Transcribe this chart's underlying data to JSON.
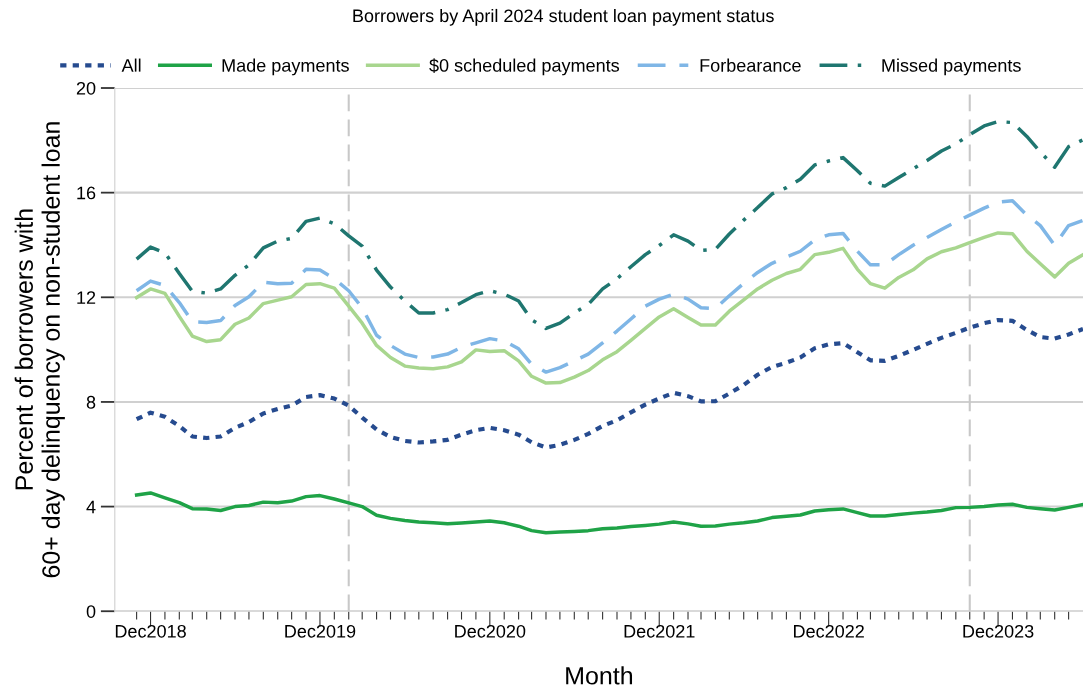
{
  "chart_data": {
    "type": "line",
    "title": "Borrowers by April 2024 student loan payment status",
    "xlabel": "Month",
    "ylabel": "Percent of borrowers with\n60+ day delinquency on non-student loan",
    "x": [
      "2018-11",
      "2018-12",
      "2019-01",
      "2019-02",
      "2019-03",
      "2019-04",
      "2019-05",
      "2019-06",
      "2019-07",
      "2019-08",
      "2019-09",
      "2019-10",
      "2019-11",
      "2019-12",
      "2020-01",
      "2020-02",
      "2020-03",
      "2020-04",
      "2020-05",
      "2020-06",
      "2020-07",
      "2020-08",
      "2020-09",
      "2020-10",
      "2020-11",
      "2020-12",
      "2021-01",
      "2021-02",
      "2021-03",
      "2021-04",
      "2021-05",
      "2021-06",
      "2021-07",
      "2021-08",
      "2021-09",
      "2021-10",
      "2021-11",
      "2021-12",
      "2022-01",
      "2022-02",
      "2022-03",
      "2022-04",
      "2022-05",
      "2022-06",
      "2022-07",
      "2022-08",
      "2022-09",
      "2022-10",
      "2022-11",
      "2022-12",
      "2023-01",
      "2023-02",
      "2023-03",
      "2023-04",
      "2023-05",
      "2023-06",
      "2023-07",
      "2023-08",
      "2023-09",
      "2023-10",
      "2023-11",
      "2023-12",
      "2024-01",
      "2024-02",
      "2024-03",
      "2024-04",
      "2024-05",
      "2024-06"
    ],
    "series": [
      {
        "name": "All",
        "color": "#264b8f",
        "line_style": "dotted",
        "values": [
          7.34,
          7.59,
          7.43,
          7.08,
          6.68,
          6.62,
          6.68,
          7.01,
          7.23,
          7.56,
          7.73,
          7.86,
          8.19,
          8.26,
          8.13,
          7.86,
          7.4,
          6.95,
          6.66,
          6.51,
          6.45,
          6.49,
          6.55,
          6.75,
          6.92,
          7.01,
          6.92,
          6.75,
          6.46,
          6.26,
          6.36,
          6.55,
          6.78,
          7.08,
          7.3,
          7.6,
          7.9,
          8.13,
          8.35,
          8.22,
          8.02,
          8.03,
          8.32,
          8.65,
          9.04,
          9.34,
          9.5,
          9.7,
          10.05,
          10.2,
          10.25,
          9.9,
          9.59,
          9.57,
          9.76,
          9.99,
          10.22,
          10.45,
          10.64,
          10.84,
          11.01,
          11.13,
          11.1,
          10.75,
          10.48,
          10.42,
          10.58,
          10.79
        ]
      },
      {
        "name": "Made payments",
        "color": "#1fa347",
        "line_style": "solid",
        "values": [
          4.44,
          4.52,
          4.33,
          4.15,
          3.92,
          3.91,
          3.85,
          4.0,
          4.04,
          4.17,
          4.15,
          4.21,
          4.38,
          4.42,
          4.29,
          4.14,
          4.0,
          3.67,
          3.55,
          3.47,
          3.41,
          3.38,
          3.34,
          3.37,
          3.41,
          3.45,
          3.38,
          3.25,
          3.08,
          3.0,
          3.03,
          3.05,
          3.08,
          3.15,
          3.18,
          3.24,
          3.28,
          3.33,
          3.41,
          3.34,
          3.25,
          3.26,
          3.33,
          3.38,
          3.45,
          3.58,
          3.63,
          3.68,
          3.83,
          3.88,
          3.91,
          3.77,
          3.64,
          3.64,
          3.7,
          3.75,
          3.79,
          3.85,
          3.96,
          3.97,
          4.0,
          4.06,
          4.09,
          3.97,
          3.92,
          3.87,
          3.97,
          4.08
        ]
      },
      {
        "name": "$0 scheduled payments",
        "color": "#a8d68e",
        "line_style": "solid",
        "values": [
          11.99,
          12.32,
          12.15,
          11.27,
          10.52,
          10.31,
          10.38,
          10.97,
          11.21,
          11.76,
          11.89,
          12.02,
          12.49,
          12.52,
          12.35,
          11.66,
          11.01,
          10.16,
          9.7,
          9.37,
          9.3,
          9.27,
          9.34,
          9.53,
          9.99,
          9.93,
          9.96,
          9.57,
          8.98,
          8.72,
          8.74,
          8.95,
          9.2,
          9.61,
          9.92,
          10.35,
          10.81,
          11.25,
          11.56,
          11.23,
          10.94,
          10.94,
          11.47,
          11.9,
          12.32,
          12.65,
          12.91,
          13.07,
          13.63,
          13.72,
          13.87,
          13.07,
          12.52,
          12.35,
          12.76,
          13.05,
          13.47,
          13.74,
          13.89,
          14.09,
          14.29,
          14.46,
          14.43,
          13.76,
          13.28,
          12.78,
          13.3,
          13.63
        ]
      },
      {
        "name": "Forbearance",
        "color": "#7fb6e6",
        "line_style": "dashed",
        "values": [
          12.25,
          12.62,
          12.45,
          11.8,
          11.07,
          11.04,
          11.11,
          11.69,
          12.02,
          12.58,
          12.52,
          12.54,
          13.07,
          13.04,
          12.71,
          12.25,
          11.6,
          10.55,
          10.16,
          9.83,
          9.7,
          9.72,
          9.83,
          10.09,
          10.26,
          10.42,
          10.33,
          10.03,
          9.44,
          9.14,
          9.31,
          9.57,
          9.83,
          10.26,
          10.71,
          11.17,
          11.66,
          11.93,
          12.12,
          11.93,
          11.6,
          11.57,
          12.06,
          12.53,
          12.95,
          13.3,
          13.54,
          13.76,
          14.19,
          14.39,
          14.44,
          13.76,
          13.24,
          13.24,
          13.63,
          13.99,
          14.29,
          14.59,
          14.88,
          15.14,
          15.41,
          15.64,
          15.69,
          15.14,
          14.74,
          13.99,
          14.74,
          14.94
        ]
      },
      {
        "name": "Missed payments",
        "color": "#1f7670",
        "line_style": "dashdot",
        "values": [
          13.46,
          13.92,
          13.7,
          12.91,
          12.23,
          12.16,
          12.32,
          12.84,
          13.24,
          13.89,
          14.15,
          14.25,
          14.9,
          15.03,
          14.81,
          14.35,
          13.96,
          13.04,
          12.39,
          11.86,
          11.4,
          11.4,
          11.53,
          11.8,
          12.1,
          12.25,
          12.12,
          11.86,
          11.14,
          10.81,
          11.01,
          11.4,
          11.73,
          12.32,
          12.71,
          13.17,
          13.63,
          13.98,
          14.39,
          14.15,
          13.79,
          13.83,
          14.42,
          14.95,
          15.43,
          15.95,
          16.19,
          16.51,
          17.06,
          17.21,
          17.34,
          16.84,
          16.36,
          16.25,
          16.58,
          16.91,
          17.23,
          17.59,
          17.86,
          18.22,
          18.55,
          18.72,
          18.68,
          18.15,
          17.56,
          16.97,
          17.76,
          18.02
        ]
      }
    ],
    "xlim": [
      "2018-09-15",
      "2024-06"
    ],
    "xticks": [
      {
        "value": "2018-11",
        "label": null
      },
      {
        "value": "2018-12",
        "label": "Dec2018"
      },
      {
        "value": "2019-01",
        "label": null
      },
      {
        "value": "2019-02",
        "label": null
      },
      {
        "value": "2019-03",
        "label": null
      },
      {
        "value": "2019-04",
        "label": null
      },
      {
        "value": "2019-05",
        "label": null
      },
      {
        "value": "2019-06",
        "label": null
      },
      {
        "value": "2019-07",
        "label": null
      },
      {
        "value": "2019-08",
        "label": null
      },
      {
        "value": "2019-09",
        "label": null
      },
      {
        "value": "2019-10",
        "label": null
      },
      {
        "value": "2019-11",
        "label": null
      },
      {
        "value": "2019-12",
        "label": "Dec2019"
      },
      {
        "value": "2020-01",
        "label": null
      },
      {
        "value": "2020-02",
        "label": null
      },
      {
        "value": "2020-03",
        "label": null
      },
      {
        "value": "2020-04",
        "label": null
      },
      {
        "value": "2020-05",
        "label": null
      },
      {
        "value": "2020-06",
        "label": null
      },
      {
        "value": "2020-07",
        "label": null
      },
      {
        "value": "2020-08",
        "label": null
      },
      {
        "value": "2020-09",
        "label": null
      },
      {
        "value": "2020-10",
        "label": null
      },
      {
        "value": "2020-11",
        "label": null
      },
      {
        "value": "2020-12",
        "label": "Dec2020"
      },
      {
        "value": "2021-01",
        "label": null
      },
      {
        "value": "2021-02",
        "label": null
      },
      {
        "value": "2021-03",
        "label": null
      },
      {
        "value": "2021-04",
        "label": null
      },
      {
        "value": "2021-05",
        "label": null
      },
      {
        "value": "2021-06",
        "label": null
      },
      {
        "value": "2021-07",
        "label": null
      },
      {
        "value": "2021-08",
        "label": null
      },
      {
        "value": "2021-09",
        "label": null
      },
      {
        "value": "2021-10",
        "label": null
      },
      {
        "value": "2021-11",
        "label": null
      },
      {
        "value": "2021-12",
        "label": "Dec2021"
      },
      {
        "value": "2022-01",
        "label": null
      },
      {
        "value": "2022-02",
        "label": null
      },
      {
        "value": "2022-03",
        "label": null
      },
      {
        "value": "2022-04",
        "label": null
      },
      {
        "value": "2022-05",
        "label": null
      },
      {
        "value": "2022-06",
        "label": null
      },
      {
        "value": "2022-07",
        "label": null
      },
      {
        "value": "2022-08",
        "label": null
      },
      {
        "value": "2022-09",
        "label": null
      },
      {
        "value": "2022-10",
        "label": null
      },
      {
        "value": "2022-11",
        "label": null
      },
      {
        "value": "2022-12",
        "label": "Dec2022"
      },
      {
        "value": "2023-01",
        "label": null
      },
      {
        "value": "2023-02",
        "label": null
      },
      {
        "value": "2023-03",
        "label": null
      },
      {
        "value": "2023-04",
        "label": null
      },
      {
        "value": "2023-05",
        "label": null
      },
      {
        "value": "2023-06",
        "label": null
      },
      {
        "value": "2023-07",
        "label": null
      },
      {
        "value": "2023-08",
        "label": null
      },
      {
        "value": "2023-09",
        "label": null
      },
      {
        "value": "2023-10",
        "label": null
      },
      {
        "value": "2023-11",
        "label": null
      },
      {
        "value": "2023-12",
        "label": "Dec2023"
      },
      {
        "value": "2024-01",
        "label": null
      },
      {
        "value": "2024-02",
        "label": null
      },
      {
        "value": "2024-03",
        "label": null
      },
      {
        "value": "2024-04",
        "label": null
      },
      {
        "value": "2024-05",
        "label": null
      }
    ],
    "ylim": [
      0,
      20
    ],
    "yticks": [
      0,
      4,
      8,
      12,
      16,
      20
    ],
    "ref_lines": [
      {
        "axis": "x",
        "value": "2020-02",
        "color": "#c8c8c8",
        "line_style": "dashed"
      },
      {
        "axis": "x",
        "value": "2023-10",
        "color": "#c8c8c8",
        "line_style": "dashed"
      }
    ],
    "grid": "y",
    "legend": "top",
    "marker": "none"
  }
}
